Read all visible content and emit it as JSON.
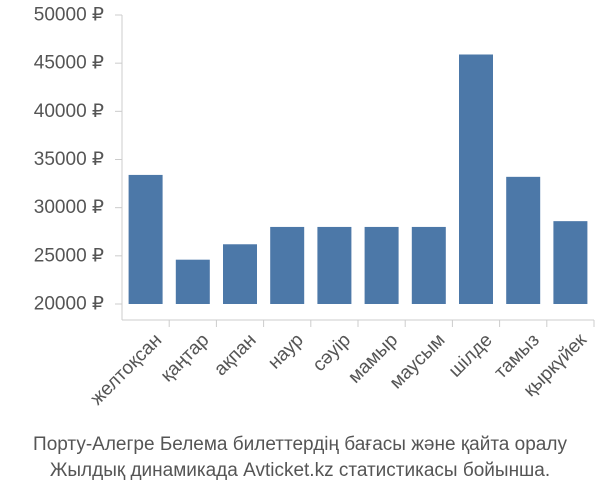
{
  "chart_data": {
    "type": "bar",
    "categories": [
      "желтоқсан",
      "қаңтар",
      "ақпан",
      "наур",
      "сәуір",
      "мамыр",
      "маусым",
      "шілде",
      "тамыз",
      "қыркүйек"
    ],
    "values": [
      33400,
      24600,
      26200,
      28000,
      28000,
      28000,
      28000,
      45900,
      33200,
      28600
    ],
    "yticks": [
      "20000 ₽",
      "25000 ₽",
      "30000 ₽",
      "35000 ₽",
      "40000 ₽",
      "45000 ₽",
      "50000 ₽"
    ],
    "ylim": [
      20000,
      50000
    ],
    "tick_step": 5000,
    "bar_color": "#4c78a8",
    "axis_color": "#cccccc",
    "text_color": "#555555",
    "grid": false
  },
  "caption": {
    "line1": "Порту-Алегре Белема билеттердің бағасы және қайта оралу",
    "line2": "Жылдық динамикада Avticket.kz статистикасы бойынша."
  }
}
